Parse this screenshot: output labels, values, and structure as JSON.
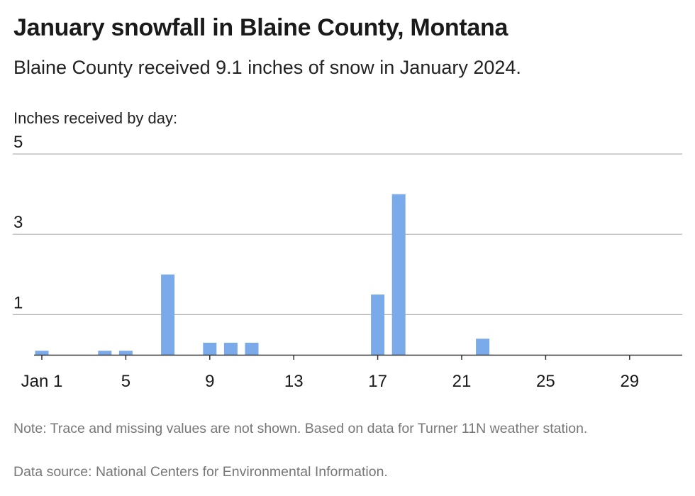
{
  "header": {
    "title": "January snowfall in Blaine County, Montana",
    "subtitle": "Blaine County received 9.1 inches of snow in January 2024."
  },
  "footer": {
    "note": "Note: Trace and missing values are not shown. Based on data for Turner 11N weather station.",
    "source": "Data source: National Centers for Environmental Information."
  },
  "colors": {
    "bar": "#7aaaea",
    "grid": "#b3b3b3",
    "axis": "#333333",
    "text": "#1a1a1a",
    "muted": "#777777"
  },
  "chart_data": {
    "type": "bar",
    "ylabel": "Inches received by day:",
    "xlabel": "",
    "ylim": [
      0,
      5
    ],
    "yticks": [
      1,
      3,
      5
    ],
    "x_tick_labels": [
      {
        "day": 1,
        "label": "Jan 1"
      },
      {
        "day": 5,
        "label": "5"
      },
      {
        "day": 9,
        "label": "9"
      },
      {
        "day": 13,
        "label": "13"
      },
      {
        "day": 17,
        "label": "17"
      },
      {
        "day": 21,
        "label": "21"
      },
      {
        "day": 25,
        "label": "25"
      },
      {
        "day": 29,
        "label": "29"
      }
    ],
    "days": [
      1,
      4,
      5,
      7,
      9,
      10,
      11,
      17,
      18,
      22
    ],
    "values": [
      0.1,
      0.1,
      0.1,
      2.0,
      0.3,
      0.3,
      0.3,
      1.5,
      4.0,
      0.4
    ],
    "day_range": [
      1,
      31
    ],
    "grid": true
  }
}
